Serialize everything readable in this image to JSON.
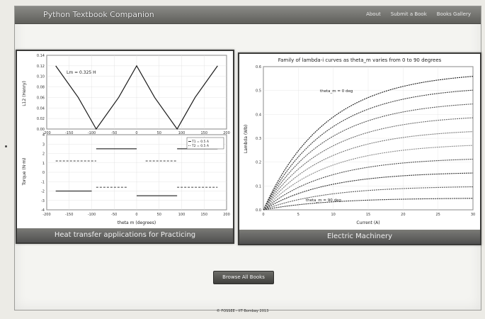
{
  "app": {
    "title": "Python Textbook Companion"
  },
  "nav": {
    "items": [
      "About",
      "Submit a Book",
      "Books Gallery"
    ]
  },
  "left_panel": {
    "caption": "Heat transfer applications for Practicing",
    "top_plot": {
      "ylabel": "L12 (Henry)",
      "annotation": "Lm = 0.325 H",
      "yticks": [
        "0.14",
        "0.12",
        "0.10",
        "0.08",
        "0.06",
        "0.04",
        "0.02",
        "0.00"
      ],
      "xticks": [
        "-200",
        "-150",
        "-100",
        "-50",
        "0",
        "50",
        "100",
        "150",
        "200"
      ]
    },
    "bottom_plot": {
      "ylabel": "Torque (N·m)",
      "xlabel": "theta m (degrees)",
      "yticks": [
        "4",
        "3",
        "2",
        "1",
        "0",
        "-1",
        "-2",
        "-3",
        "-4"
      ],
      "xticks": [
        "-200",
        "-150",
        "-100",
        "-50",
        "0",
        "50",
        "100",
        "150",
        "200"
      ],
      "legend": [
        "T1 = 0.5 A",
        "T2 = 0.5 A"
      ]
    }
  },
  "right_panel": {
    "caption": "Electric Machinery",
    "chart_title": "Family of lambda-i curves as theta_m varies from 0 to 90 degrees",
    "ylabel": "Lambda (Wb)",
    "xlabel": "Current (A)",
    "annotation_top": "theta_m = 0 deg",
    "annotation_bottom": "theta_m = 90 deg",
    "yticks": [
      "0.6",
      "0.5",
      "0.4",
      "0.3",
      "0.2",
      "0.1",
      "0.0"
    ],
    "xticks": [
      "0",
      "5",
      "10",
      "15",
      "20",
      "25",
      "30"
    ]
  },
  "chart_data": [
    {
      "type": "line",
      "title": "",
      "xlabel": "",
      "ylabel": "L12 (Henry)",
      "xlim": [
        -200,
        200
      ],
      "ylim": [
        0,
        0.14
      ],
      "series": [
        {
          "x": [
            -180,
            -130,
            -90,
            -40,
            0,
            40,
            90,
            130,
            180
          ],
          "y": [
            0.12,
            0.06,
            0.0,
            0.06,
            0.12,
            0.06,
            0.0,
            0.06,
            0.12
          ]
        }
      ]
    },
    {
      "type": "line",
      "title": "",
      "xlabel": "theta m (degrees)",
      "ylabel": "Torque (N·m)",
      "xlim": [
        -200,
        200
      ],
      "ylim": [
        -4,
        4
      ],
      "series": [
        {
          "name": "T1 = 0.5 A",
          "segments": [
            [
              -180,
              -100,
              -2
            ],
            [
              -90,
              0,
              2.5
            ],
            [
              0,
              90,
              -2.5
            ],
            [
              90,
              180,
              2.5
            ]
          ]
        },
        {
          "name": "T2 = 0.5 A",
          "segments": [
            [
              -180,
              -90,
              1.2
            ],
            [
              -90,
              -20,
              -1.6
            ],
            [
              20,
              90,
              1.2
            ],
            [
              90,
              180,
              -1.6
            ]
          ]
        }
      ]
    },
    {
      "type": "line",
      "title": "Family of lambda-i curves as theta_m varies from 0 to 90 degrees",
      "xlabel": "Current (A)",
      "ylabel": "Lambda (Wb)",
      "xlim": [
        0,
        30
      ],
      "ylim": [
        0,
        0.6
      ],
      "series": [
        {
          "max": 0.58
        },
        {
          "max": 0.52
        },
        {
          "max": 0.46
        },
        {
          "max": 0.4
        },
        {
          "max": 0.34
        },
        {
          "max": 0.28
        },
        {
          "max": 0.22
        },
        {
          "max": 0.16
        },
        {
          "max": 0.1
        },
        {
          "max": 0.05
        }
      ]
    }
  ],
  "actions": {
    "browse_label": "Browse All Books"
  },
  "footer": {
    "text": "© FOSSEE - IIT Bombay 2013"
  }
}
